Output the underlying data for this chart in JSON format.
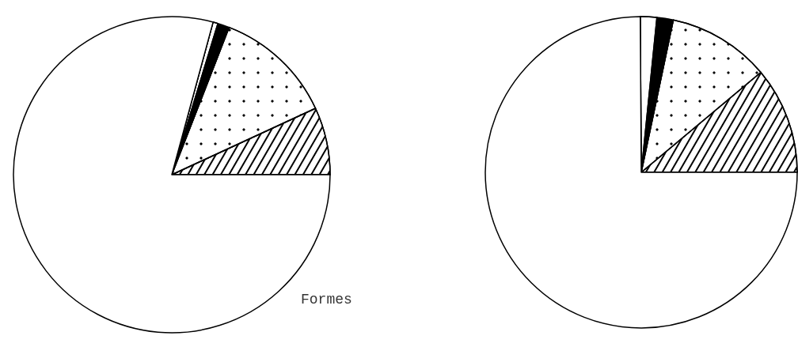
{
  "chart_data": [
    {
      "type": "pie",
      "categories": [
        null,
        null,
        null,
        null,
        null
      ],
      "values": [
        6.9,
        12.2,
        1.2,
        0.5,
        79.2
      ],
      "colors": [
        "#ffffff",
        "#ffffff",
        "#000000",
        "#ffffff",
        "#ffffff"
      ],
      "annotations": [
        "Formes"
      ]
    },
    {
      "type": "pie",
      "categories": [
        null,
        null,
        null,
        null,
        null
      ],
      "values": [
        11.1,
        10.6,
        1.7,
        1.7,
        74.9
      ],
      "colors": [
        "#ffffff",
        "#ffffff",
        "#000000",
        "#ffffff",
        "#ffffff"
      ]
    }
  ]
}
